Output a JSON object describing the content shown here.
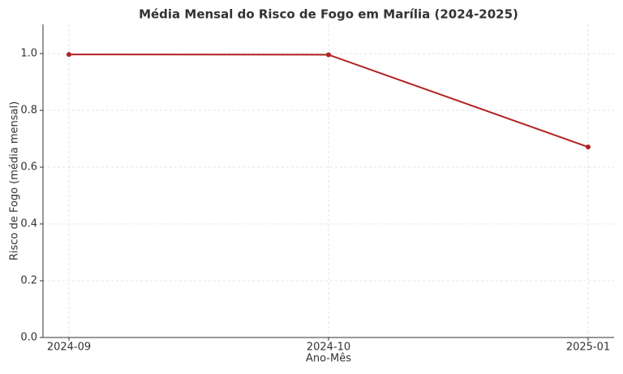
{
  "chart_data": {
    "type": "line",
    "title": "Média Mensal do Risco de Fogo em Marília (2024-2025)",
    "x_label": "Ano-Mês",
    "y_label": "Risco de Fogo (média mensal)",
    "categories": [
      "2024-09",
      "2024-10",
      "2025-01"
    ],
    "series": [
      {
        "name": "Risco de Fogo",
        "color": "#b22222",
        "values": [
          0.997,
          0.996,
          0.671
        ]
      }
    ],
    "ylim": [
      0,
      1.103
    ],
    "yticks": [
      {
        "value": 0,
        "label": "0.0"
      },
      0.2,
      0.4,
      0.6,
      0.8,
      {
        "value": 1,
        "label": "1.0"
      }
    ],
    "grid": true
  }
}
